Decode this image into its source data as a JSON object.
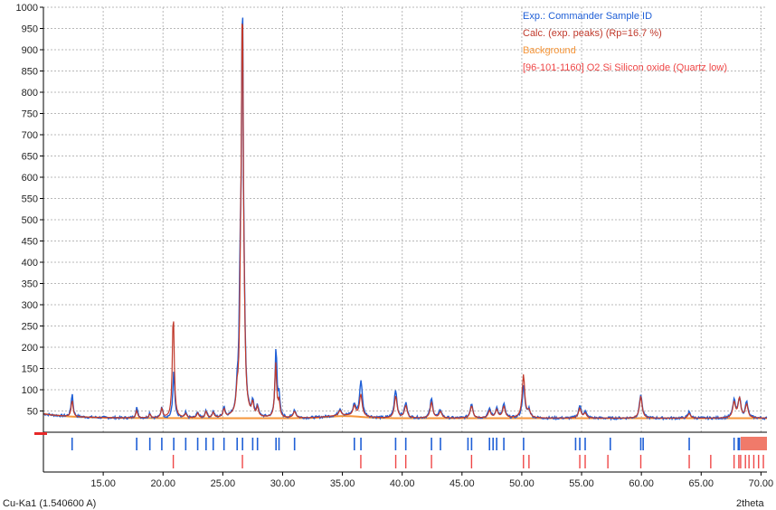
{
  "chart_data": {
    "type": "line",
    "xlabel": "2theta",
    "radiation_label": "Cu-Ka1 (1.540600 A)",
    "xlim": [
      10,
      70.5
    ],
    "ylim": [
      0,
      1000
    ],
    "grid": true,
    "legend_placement": "top-right",
    "x_ticks": [
      "15.00",
      "20.00",
      "25.00",
      "30.00",
      "35.00",
      "40.00",
      "45.00",
      "50.00",
      "55.00",
      "60.00",
      "65.00",
      "70.00"
    ],
    "y_ticks": [
      "50",
      "100",
      "150",
      "200",
      "250",
      "300",
      "350",
      "400",
      "450",
      "500",
      "550",
      "600",
      "650",
      "700",
      "750",
      "800",
      "850",
      "900",
      "950",
      "1000"
    ],
    "legend": [
      {
        "label": "Exp.: Commander Sample ID",
        "color": "#1f5fd6"
      },
      {
        "label": "Calc. (exp. peaks) (Rp=16.7 %)",
        "color": "#c0392b"
      },
      {
        "label": "Background",
        "color": "#f5963a"
      },
      {
        "label": "[96-101-1160] O2 Si Silicon oxide (Quartz low)",
        "color": "#ef4747"
      }
    ],
    "background_level": 33,
    "series": [
      {
        "name": "Exp.: Commander Sample ID",
        "color": "#1f5fd6",
        "peaks": [
          [
            12.4,
            88
          ],
          [
            17.8,
            58
          ],
          [
            18.9,
            45
          ],
          [
            19.9,
            60
          ],
          [
            20.9,
            145
          ],
          [
            21.9,
            45
          ],
          [
            22.9,
            48
          ],
          [
            23.6,
            52
          ],
          [
            24.2,
            48
          ],
          [
            25.1,
            58
          ],
          [
            26.2,
            75
          ],
          [
            26.45,
            290
          ],
          [
            26.64,
            1000
          ],
          [
            26.8,
            150
          ],
          [
            27.5,
            68
          ],
          [
            27.9,
            60
          ],
          [
            29.45,
            200
          ],
          [
            29.7,
            80
          ],
          [
            31.0,
            52
          ],
          [
            34.8,
            50
          ],
          [
            36.0,
            60
          ],
          [
            36.55,
            118
          ],
          [
            39.45,
            100
          ],
          [
            40.3,
            68
          ],
          [
            42.45,
            78
          ],
          [
            43.2,
            52
          ],
          [
            45.8,
            68
          ],
          [
            47.3,
            55
          ],
          [
            47.9,
            56
          ],
          [
            48.5,
            65
          ],
          [
            50.15,
            108
          ],
          [
            50.6,
            52
          ],
          [
            54.85,
            62
          ],
          [
            55.3,
            48
          ],
          [
            59.95,
            90
          ],
          [
            64.0,
            48
          ],
          [
            67.75,
            75
          ],
          [
            68.2,
            80
          ],
          [
            68.8,
            70
          ]
        ]
      },
      {
        "name": "Calc. (exp. peaks) (Rp=16.7 %)",
        "color": "#c0392b",
        "peaks": [
          [
            12.4,
            72
          ],
          [
            17.8,
            50
          ],
          [
            18.9,
            42
          ],
          [
            19.9,
            55
          ],
          [
            20.86,
            285
          ],
          [
            21.9,
            42
          ],
          [
            22.9,
            44
          ],
          [
            23.6,
            48
          ],
          [
            24.2,
            45
          ],
          [
            25.1,
            52
          ],
          [
            26.2,
            70
          ],
          [
            26.5,
            270
          ],
          [
            26.64,
            970
          ],
          [
            26.8,
            130
          ],
          [
            27.5,
            62
          ],
          [
            27.9,
            55
          ],
          [
            29.42,
            160
          ],
          [
            29.7,
            70
          ],
          [
            31.0,
            48
          ],
          [
            34.8,
            45
          ],
          [
            36.0,
            56
          ],
          [
            36.54,
            85
          ],
          [
            39.46,
            85
          ],
          [
            40.3,
            62
          ],
          [
            42.45,
            70
          ],
          [
            43.2,
            48
          ],
          [
            45.8,
            62
          ],
          [
            47.3,
            50
          ],
          [
            47.9,
            52
          ],
          [
            48.5,
            60
          ],
          [
            50.14,
            135
          ],
          [
            50.6,
            48
          ],
          [
            54.85,
            56
          ],
          [
            55.3,
            44
          ],
          [
            59.95,
            85
          ],
          [
            64.0,
            44
          ],
          [
            67.75,
            70
          ],
          [
            68.2,
            80
          ],
          [
            68.8,
            65
          ]
        ]
      }
    ],
    "sample_peak_markers": [
      12.4,
      17.8,
      18.9,
      19.9,
      20.9,
      21.9,
      22.9,
      23.6,
      24.2,
      25.1,
      26.2,
      26.65,
      27.5,
      27.9,
      29.45,
      29.7,
      31.0,
      36.0,
      36.55,
      39.45,
      40.3,
      42.45,
      43.2,
      45.5,
      45.8,
      47.3,
      47.6,
      47.9,
      48.5,
      50.15,
      54.5,
      54.85,
      55.3,
      57.4,
      59.95,
      60.15,
      64.0,
      67.75,
      68.1,
      68.2,
      68.8,
      69.0,
      69.5,
      70.0
    ],
    "reference_peak_markers": [
      20.86,
      26.64,
      36.54,
      39.46,
      40.3,
      42.45,
      45.8,
      50.14,
      50.6,
      54.85,
      55.3,
      57.2,
      59.95,
      64.0,
      65.8,
      67.75,
      68.15,
      68.3,
      68.7,
      69.0,
      69.4,
      69.8,
      70.2
    ],
    "colors": {
      "axis": "#000000",
      "grid": "#b8b8b8",
      "baseline_marker": "#e62828",
      "reference_band": "#f07a6a"
    }
  }
}
